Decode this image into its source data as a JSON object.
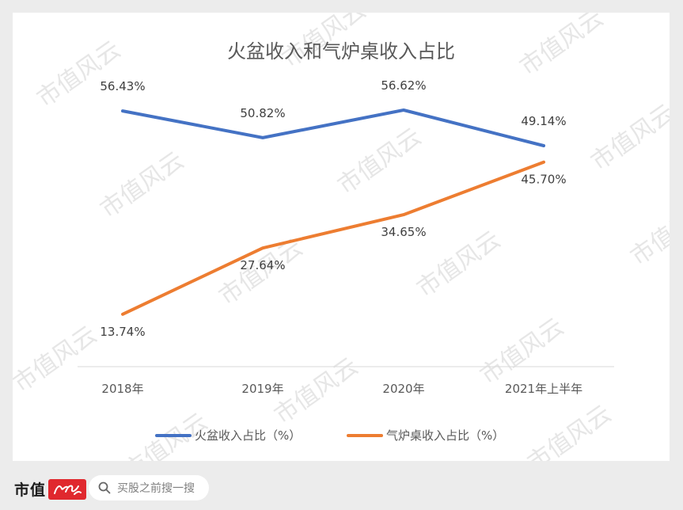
{
  "chart_data": {
    "type": "line",
    "title": "火盆收入和气炉桌收入占比",
    "categories": [
      "2018年",
      "2019年",
      "2020年",
      "2021年上半年"
    ],
    "series": [
      {
        "name": "火盆收入占比（%）",
        "values": [
          56.43,
          50.82,
          56.62,
          49.14
        ],
        "labels": [
          "56.43%",
          "50.82%",
          "56.62%",
          "49.14%"
        ],
        "color": "#4472c4"
      },
      {
        "name": "气炉桌收入占比（%）",
        "values": [
          13.74,
          27.64,
          34.65,
          45.7
        ],
        "labels": [
          "13.74%",
          "27.64%",
          "34.65%",
          "45.70%"
        ],
        "color": "#ed7d31"
      }
    ],
    "grid": false,
    "legend_position": "bottom"
  },
  "watermark": "市值风云",
  "footer": {
    "brand": "市值",
    "brand_badge": "风云",
    "search_placeholder": "买股之前搜一搜"
  }
}
